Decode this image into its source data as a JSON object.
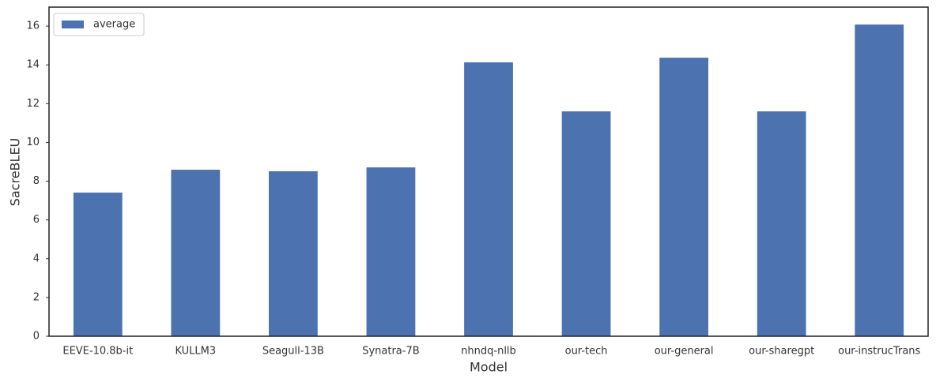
{
  "chart_data": {
    "type": "bar",
    "xlabel": "Model",
    "ylabel": "SacreBLEU",
    "categories": [
      "EEVE-10.8b-it",
      "KULLM3",
      "Seagull-13B",
      "Synatra-7B",
      "nhndq-nllb",
      "our-tech",
      "our-general",
      "our-sharegpt",
      "our-instrucTrans"
    ],
    "series": [
      {
        "name": "average",
        "color": "#4c72b0",
        "values": [
          7.41,
          8.59,
          8.51,
          8.71,
          14.13,
          11.6,
          14.37,
          11.6,
          16.08
        ]
      }
    ],
    "ylim": [
      0,
      16.98
    ],
    "yticks": [
      0,
      2,
      4,
      6,
      8,
      10,
      12,
      14,
      16
    ],
    "grid": false,
    "legend": "upper-left"
  }
}
